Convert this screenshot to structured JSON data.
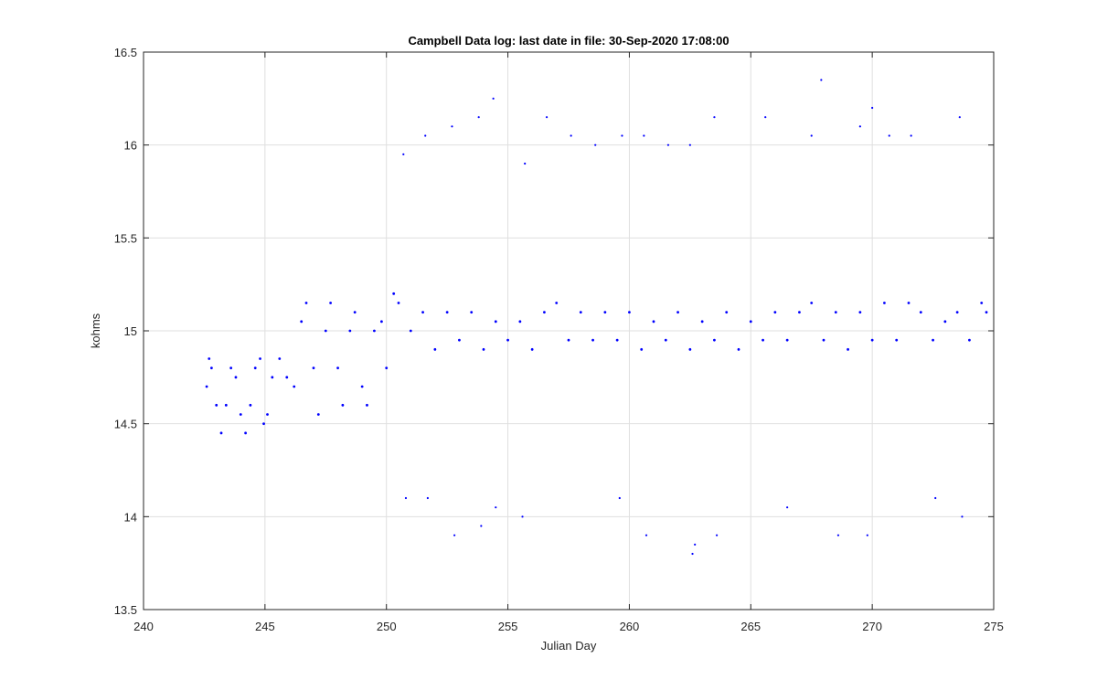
{
  "colors": {
    "series": "#0000ff",
    "grid": "#dfdfdf",
    "axis": "#262626",
    "background": "#ffffff"
  },
  "chart_data": {
    "type": "scatter",
    "title": "Campbell Data log: last date in file: 30-Sep-2020 17:08:00",
    "xlabel": "Julian Day",
    "ylabel": "kohms",
    "xlim": [
      240,
      275
    ],
    "ylim": [
      13.5,
      16.5
    ],
    "xticks": [
      240,
      245,
      250,
      255,
      260,
      265,
      270,
      275
    ],
    "xtick_labels": [
      "240",
      "245",
      "250",
      "255",
      "260",
      "265",
      "270",
      "275"
    ],
    "yticks": [
      13.5,
      14,
      14.5,
      15,
      15.5,
      16,
      16.5
    ],
    "ytick_labels": [
      "13.5",
      "14",
      "14.5",
      "15",
      "15.5",
      "16",
      "16.5"
    ],
    "grid": true,
    "marker": "dot",
    "data_range_x": [
      242.6,
      274.7
    ],
    "series": [
      {
        "values_sampled": [
          [
            242.6,
            14.7
          ],
          [
            242.7,
            14.85
          ],
          [
            242.8,
            14.8
          ],
          [
            243.0,
            14.6
          ],
          [
            243.2,
            14.45
          ],
          [
            243.4,
            14.6
          ],
          [
            243.6,
            14.8
          ],
          [
            243.8,
            14.75
          ],
          [
            244.0,
            14.55
          ],
          [
            244.2,
            14.45
          ],
          [
            244.4,
            14.6
          ],
          [
            244.6,
            14.8
          ],
          [
            244.8,
            14.85
          ],
          [
            244.95,
            14.5
          ],
          [
            245.1,
            14.55
          ],
          [
            245.3,
            14.75
          ],
          [
            245.6,
            14.85
          ],
          [
            245.9,
            14.75
          ],
          [
            246.2,
            14.7
          ],
          [
            246.5,
            15.05
          ],
          [
            246.7,
            15.15
          ],
          [
            247.0,
            14.8
          ],
          [
            247.2,
            14.55
          ],
          [
            247.5,
            15.0
          ],
          [
            247.7,
            15.15
          ],
          [
            248.0,
            14.8
          ],
          [
            248.2,
            14.6
          ],
          [
            248.5,
            15.0
          ],
          [
            248.7,
            15.1
          ],
          [
            249.0,
            14.7
          ],
          [
            249.2,
            14.6
          ],
          [
            249.5,
            15.0
          ],
          [
            249.8,
            15.05
          ],
          [
            250.0,
            14.8
          ],
          [
            250.3,
            15.2
          ],
          [
            250.5,
            15.15
          ],
          [
            251.0,
            15.0
          ],
          [
            251.5,
            15.1
          ],
          [
            252.0,
            14.9
          ],
          [
            252.5,
            15.1
          ],
          [
            253.0,
            14.95
          ],
          [
            253.5,
            15.1
          ],
          [
            254.0,
            14.9
          ],
          [
            254.5,
            15.05
          ],
          [
            255.0,
            14.95
          ],
          [
            255.5,
            15.05
          ],
          [
            256.0,
            14.9
          ],
          [
            256.5,
            15.1
          ],
          [
            257.0,
            15.15
          ],
          [
            257.5,
            14.95
          ],
          [
            258.0,
            15.1
          ],
          [
            258.5,
            14.95
          ],
          [
            259.0,
            15.1
          ],
          [
            259.5,
            14.95
          ],
          [
            260.0,
            15.1
          ],
          [
            260.5,
            14.9
          ],
          [
            261.0,
            15.05
          ],
          [
            261.5,
            14.95
          ],
          [
            262.0,
            15.1
          ],
          [
            262.5,
            14.9
          ],
          [
            263.0,
            15.05
          ],
          [
            263.5,
            14.95
          ],
          [
            264.0,
            15.1
          ],
          [
            264.5,
            14.9
          ],
          [
            265.0,
            15.05
          ],
          [
            265.5,
            14.95
          ],
          [
            266.0,
            15.1
          ],
          [
            266.5,
            14.95
          ],
          [
            267.0,
            15.1
          ],
          [
            267.5,
            15.15
          ],
          [
            268.0,
            14.95
          ],
          [
            268.5,
            15.1
          ],
          [
            269.0,
            14.9
          ],
          [
            269.5,
            15.1
          ],
          [
            270.0,
            14.95
          ],
          [
            270.5,
            15.15
          ],
          [
            271.0,
            14.95
          ],
          [
            271.5,
            15.15
          ],
          [
            272.0,
            15.1
          ],
          [
            272.5,
            14.95
          ],
          [
            273.0,
            15.05
          ],
          [
            273.5,
            15.1
          ],
          [
            274.0,
            14.95
          ],
          [
            274.5,
            15.15
          ],
          [
            274.7,
            15.1
          ]
        ],
        "outliers_sampled": [
          [
            250.7,
            15.95
          ],
          [
            250.8,
            14.1
          ],
          [
            251.6,
            16.05
          ],
          [
            251.7,
            14.1
          ],
          [
            252.7,
            16.1
          ],
          [
            252.8,
            13.9
          ],
          [
            253.8,
            16.15
          ],
          [
            253.9,
            13.95
          ],
          [
            254.4,
            16.25
          ],
          [
            254.5,
            14.05
          ],
          [
            255.6,
            14.0
          ],
          [
            255.7,
            15.9
          ],
          [
            256.6,
            16.15
          ],
          [
            257.6,
            16.05
          ],
          [
            258.6,
            16.0
          ],
          [
            259.6,
            14.1
          ],
          [
            259.7,
            16.05
          ],
          [
            260.6,
            16.05
          ],
          [
            260.7,
            13.9
          ],
          [
            261.6,
            16.0
          ],
          [
            262.5,
            16.0
          ],
          [
            262.6,
            13.8
          ],
          [
            262.7,
            13.85
          ],
          [
            263.5,
            16.15
          ],
          [
            263.6,
            13.9
          ],
          [
            265.6,
            16.15
          ],
          [
            266.5,
            14.05
          ],
          [
            267.5,
            16.05
          ],
          [
            267.9,
            16.35
          ],
          [
            268.6,
            13.9
          ],
          [
            269.5,
            16.1
          ],
          [
            269.8,
            13.9
          ],
          [
            270.0,
            16.2
          ],
          [
            270.7,
            16.05
          ],
          [
            271.6,
            16.05
          ],
          [
            272.6,
            14.1
          ],
          [
            273.6,
            16.15
          ],
          [
            273.7,
            14.0
          ]
        ]
      }
    ]
  }
}
